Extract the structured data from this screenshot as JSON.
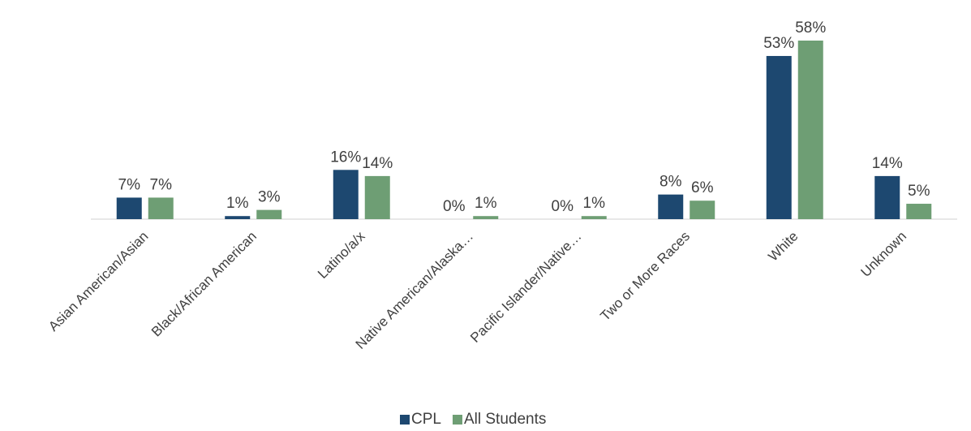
{
  "chart_data": {
    "type": "bar",
    "categories": [
      "Asian American/Asian",
      "Black/African American",
      "Latino/a/x",
      "Native American/Alaska…",
      "Pacific Islander/Native…",
      "Two or More Races",
      "White",
      "Unknown"
    ],
    "series": [
      {
        "name": "CPL",
        "color": "#1d4870",
        "values": [
          7,
          1,
          16,
          0,
          0,
          8,
          53,
          14
        ],
        "value_labels": [
          "7%",
          "1%",
          "16%",
          "0%",
          "0%",
          "8%",
          "53%",
          "14%"
        ]
      },
      {
        "name": "All Students",
        "color": "#6e9e74",
        "values": [
          7,
          3,
          14,
          1,
          1,
          6,
          58,
          5
        ],
        "value_labels": [
          "7%",
          "3%",
          "14%",
          "1%",
          "1%",
          "6%",
          "58%",
          "5%"
        ]
      }
    ],
    "legend": "bottom"
  }
}
